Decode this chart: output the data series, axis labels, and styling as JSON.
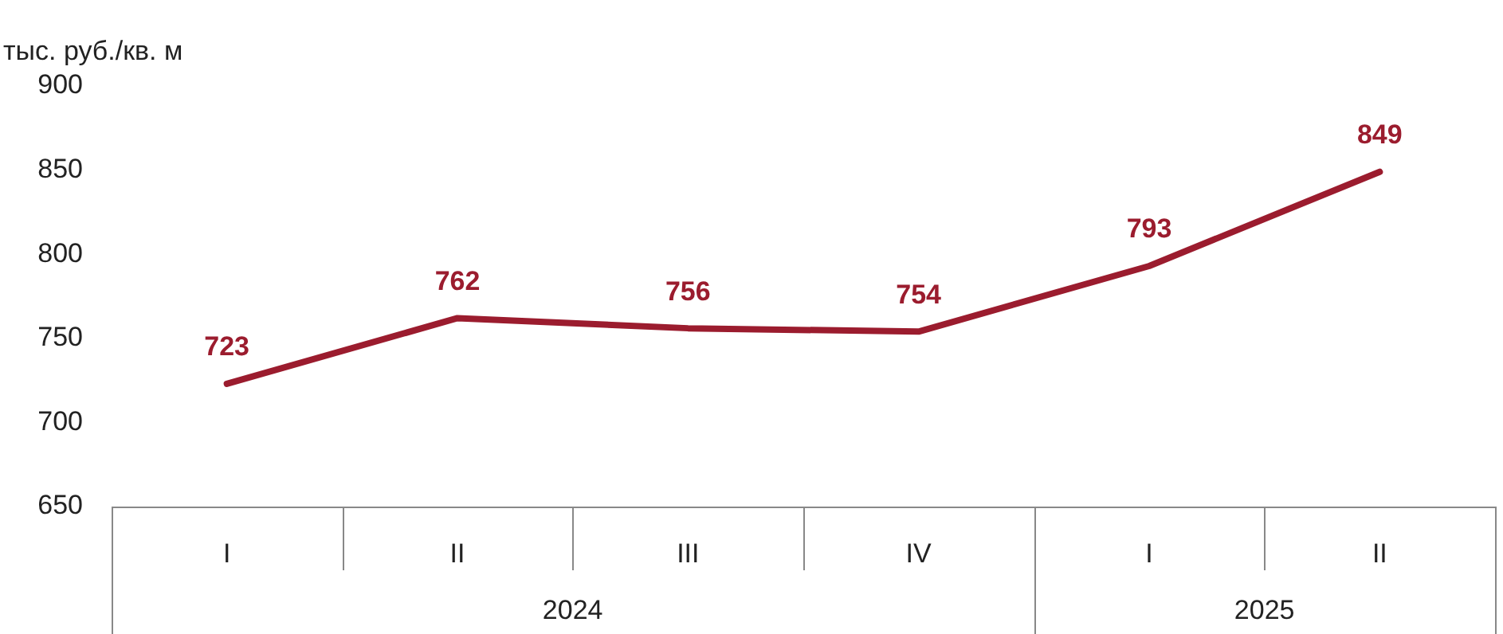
{
  "chart_data": {
    "type": "line",
    "ylabel": "тыс. руб./кв. м",
    "categories": [
      "I",
      "II",
      "III",
      "IV",
      "I",
      "II"
    ],
    "series": [
      {
        "color": "#9b1c2e",
        "values": [
          723,
          762,
          756,
          754,
          793,
          849
        ]
      }
    ],
    "ylim": [
      650,
      900
    ],
    "yticks": [
      650,
      700,
      750,
      800,
      850,
      900
    ],
    "grid": false,
    "legend": false,
    "marker": "none",
    "line_style": "solid",
    "data_labels": true,
    "annotations": [
      "2024",
      "2025"
    ]
  }
}
